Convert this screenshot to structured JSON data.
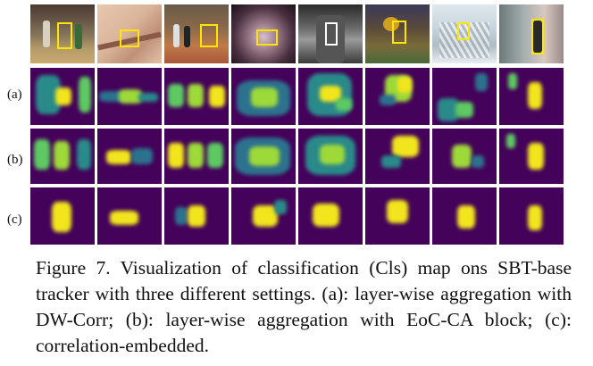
{
  "figure": {
    "row_labels": [
      "(a)",
      "(b)",
      "(c)"
    ],
    "caption": {
      "label": "Figure 7.",
      "text": "Visualization of classification (Cls) map ons SBT-base tracker with three different settings. (a): layer-wise aggregation with DW-Corr; (b): layer-wise aggregation with EoC-CA block; (c): correlation-embedded."
    },
    "colors": {
      "heatmap_background": "#44025a",
      "bbox": "#ffe600"
    }
  }
}
